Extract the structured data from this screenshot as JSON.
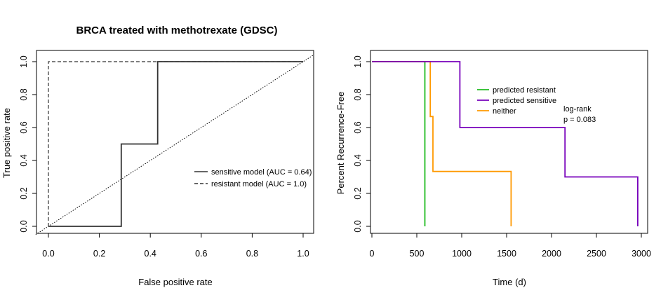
{
  "colors": {
    "axis": "#000000",
    "sensitive_model": "#333333",
    "resistant_model": "#333333",
    "diagonal": "#000000",
    "predicted_resistant": "#22bb22",
    "predicted_sensitive": "#7700bb",
    "neither": "#ff9900"
  },
  "chart_data": [
    {
      "type": "line",
      "title": "BRCA treated with methotrexate (GDSC)",
      "xlabel": "False positive rate",
      "ylabel": "True positive rate",
      "xlim": [
        0,
        1
      ],
      "ylim": [
        0,
        1
      ],
      "x_ticks": [
        0.0,
        0.2,
        0.4,
        0.6,
        0.8,
        1.0
      ],
      "x_tick_labels": [
        "0.0",
        "0.2",
        "0.4",
        "0.6",
        "0.8",
        "1.0"
      ],
      "y_ticks": [
        0.0,
        0.2,
        0.4,
        0.6,
        0.8,
        1.0
      ],
      "y_tick_labels": [
        "0.0",
        "0.2",
        "0.4",
        "0.6",
        "0.8",
        "1.0"
      ],
      "grid": false,
      "legend_position": "right",
      "series": [
        {
          "name": "sensitive model (AUC = 0.64)",
          "style": "solid",
          "x": [
            0.0,
            0.286,
            0.286,
            0.429,
            0.429,
            1.0
          ],
          "y": [
            0.0,
            0.0,
            0.5,
            0.5,
            1.0,
            1.0
          ]
        },
        {
          "name": "resistant model (AUC = 1.0)",
          "style": "dashed",
          "x": [
            0.0,
            0.0,
            1.0
          ],
          "y": [
            0.0,
            1.0,
            1.0
          ]
        }
      ],
      "reference_line": {
        "style": "dotted",
        "x": [
          0,
          1
        ],
        "y": [
          0,
          1
        ]
      }
    },
    {
      "type": "line",
      "title": "",
      "xlabel": "Time (d)",
      "ylabel": "Percent Recurrence-Free",
      "xlim": [
        0,
        3000
      ],
      "ylim": [
        0,
        1
      ],
      "x_ticks": [
        0,
        500,
        1000,
        1500,
        2000,
        2500,
        3000
      ],
      "x_tick_labels": [
        "0",
        "500",
        "1000",
        "1500",
        "2000",
        "2500",
        "3000"
      ],
      "y_ticks": [
        0.0,
        0.2,
        0.4,
        0.6,
        0.8,
        1.0
      ],
      "y_tick_labels": [
        "0.0",
        "0.2",
        "0.4",
        "0.6",
        "0.8",
        "1.0"
      ],
      "grid": false,
      "legend_position": "top-center",
      "annotation": [
        "log-rank",
        "p = 0.083"
      ],
      "series": [
        {
          "name": "predicted resistant",
          "x": [
            0,
            590,
            590
          ],
          "y": [
            1.0,
            1.0,
            0.0
          ]
        },
        {
          "name": "predicted sensitive",
          "x": [
            0,
            980,
            980,
            2150,
            2150,
            2960,
            2960
          ],
          "y": [
            1.0,
            1.0,
            0.6,
            0.6,
            0.3,
            0.3,
            0.0
          ]
        },
        {
          "name": "neither",
          "x": [
            0,
            650,
            650,
            680,
            680,
            1550,
            1550
          ],
          "y": [
            1.0,
            1.0,
            0.667,
            0.667,
            0.333,
            0.333,
            0.0
          ]
        }
      ]
    }
  ]
}
